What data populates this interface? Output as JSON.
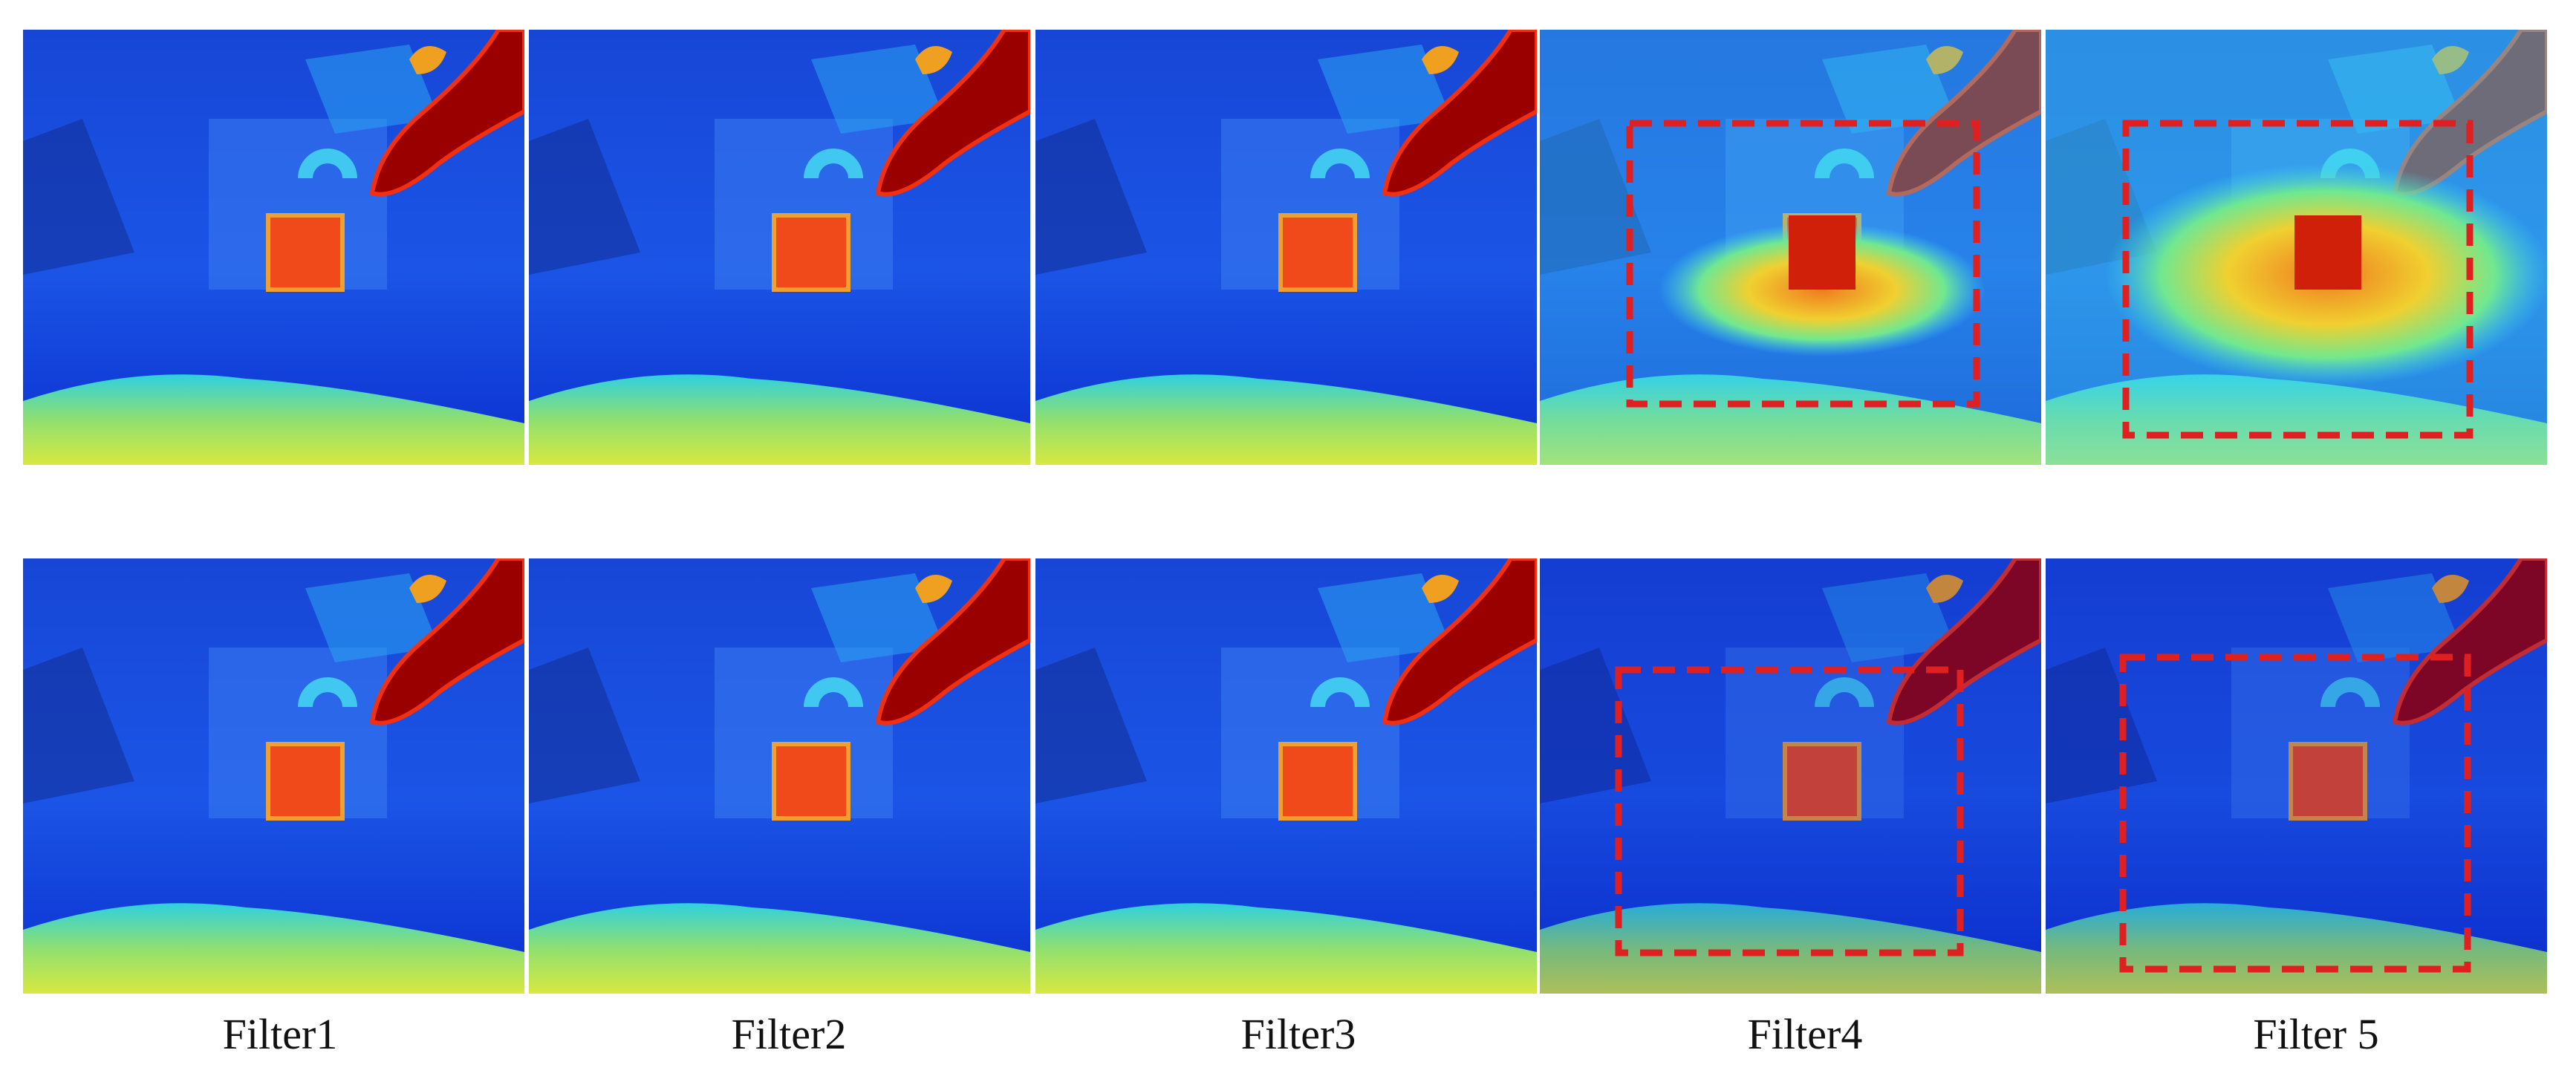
{
  "panels": {
    "labels": [
      "Filter1",
      "Filter2",
      "Filter3",
      "Filter4",
      "Filter 5"
    ]
  }
}
